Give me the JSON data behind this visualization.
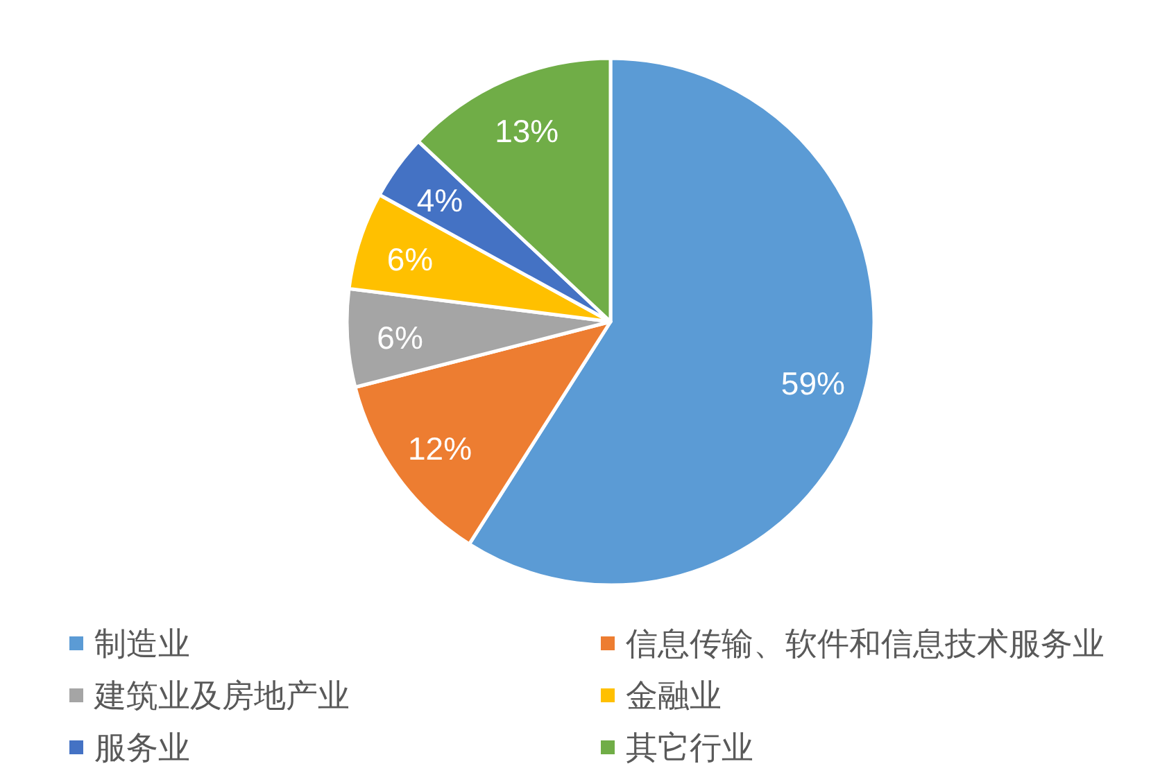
{
  "chart_data": {
    "type": "pie",
    "categories": [
      "制造业",
      "信息传输、软件和信息技术服务业",
      "建筑业及房地产业",
      "金融业",
      "服务业",
      "其它行业"
    ],
    "values": [
      59,
      12,
      6,
      6,
      4,
      13
    ],
    "colors": [
      "#5b9bd5",
      "#ed7d31",
      "#a5a5a5",
      "#ffc000",
      "#4472c4",
      "#70ad47"
    ],
    "value_labels": [
      "59%",
      "12%",
      "6%",
      "6%",
      "4%",
      "13%"
    ],
    "legend": "bottom"
  }
}
